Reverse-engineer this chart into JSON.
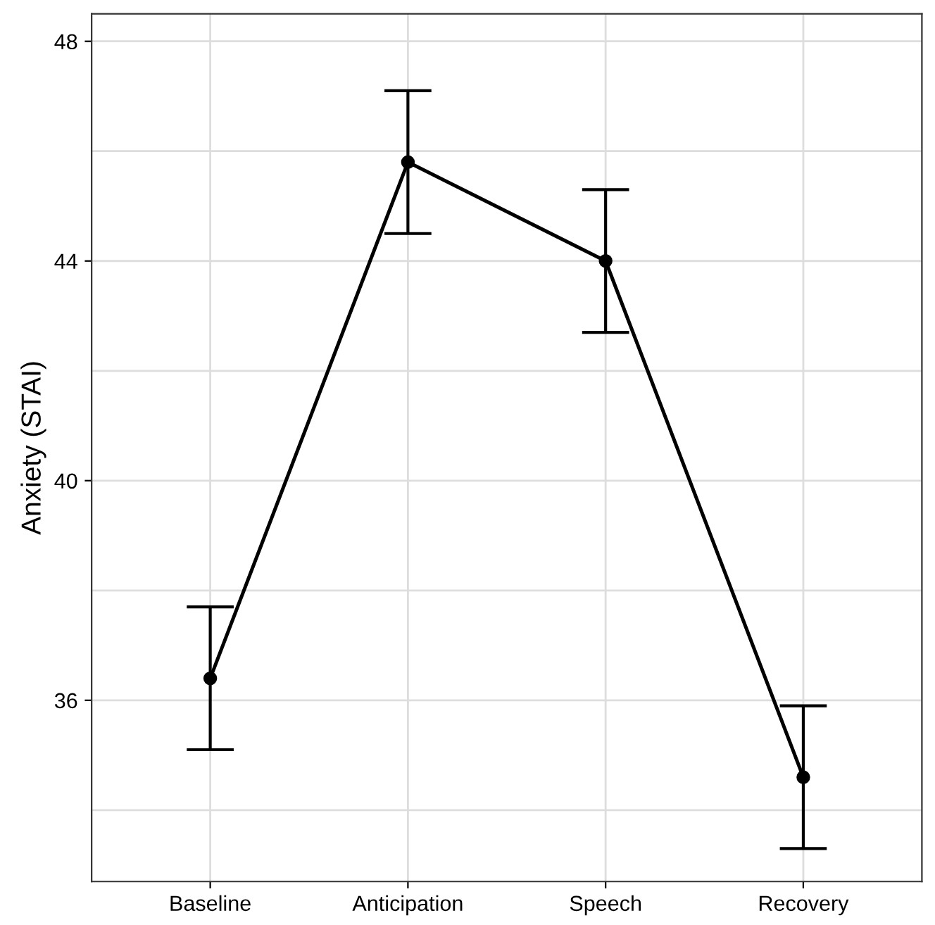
{
  "chart_data": {
    "type": "line",
    "ylabel": "Anxiety (STAI)",
    "categories": [
      "Baseline",
      "Anticipation",
      "Speech",
      "Recovery"
    ],
    "series": [
      {
        "color": "#000000",
        "values": [
          36.4,
          45.8,
          44.0,
          34.6
        ],
        "errors": [
          1.3,
          1.3,
          1.3,
          1.3
        ]
      }
    ],
    "ylim": [
      32.7,
      48.5
    ],
    "yticks": [
      36,
      40,
      44,
      48
    ],
    "grid": true,
    "marker": "circle",
    "line_style": "solid"
  }
}
